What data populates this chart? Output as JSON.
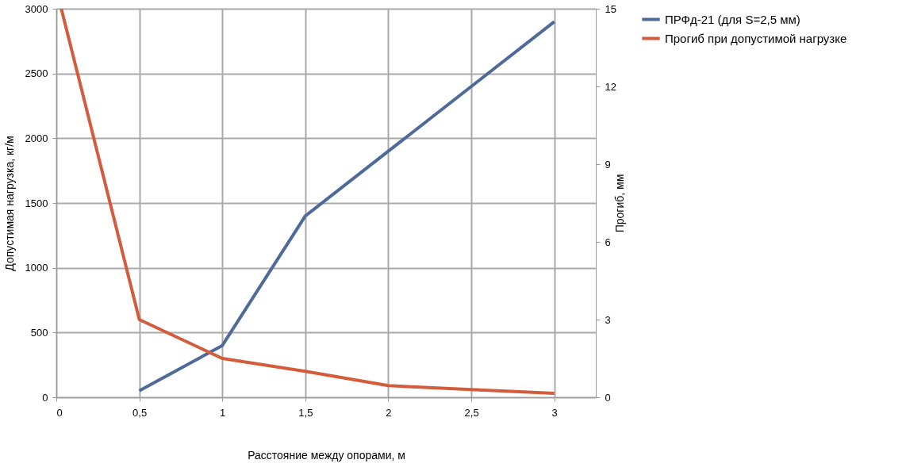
{
  "chart_data": {
    "type": "line",
    "xlabel": "Расстояние между опорами, м",
    "ylabel": "Допустимая нагрузка, кг/м",
    "y2label": "Прогиб, мм",
    "series": [
      {
        "name": "ПРФд-21 (для S=2,5 мм)",
        "color": "#4f6a98",
        "x": [
          0.5,
          1,
          1.5,
          2,
          2.5,
          3
        ],
        "values": [
          50,
          400,
          1400,
          1900,
          2400,
          2900
        ]
      },
      {
        "name": "Прогиб при допустимой нагрузке",
        "color": "#d35c3c",
        "axis": "y2",
        "x": [
          0.03,
          0.5,
          1,
          1.5,
          2,
          2.5,
          3
        ],
        "values": [
          15,
          3,
          1.5,
          1,
          0.45,
          0.3,
          0.15
        ]
      }
    ],
    "xlim": [
      0,
      3.25
    ],
    "xticks": [
      0,
      {
        "value": 0.5,
        "label": "0,5"
      },
      1,
      {
        "value": 1.5,
        "label": "1,5"
      },
      2,
      {
        "value": 2.5,
        "label": "2,5"
      },
      3
    ],
    "ylim": [
      0,
      3000
    ],
    "yticks": [
      0,
      500,
      1000,
      1500,
      2000,
      2500,
      3000
    ],
    "y2lim": [
      0,
      15
    ],
    "y2ticks": [
      0,
      3,
      6,
      9,
      12,
      15
    ],
    "grid": true,
    "legend": "right",
    "marker": "none",
    "line_style": "solid"
  }
}
